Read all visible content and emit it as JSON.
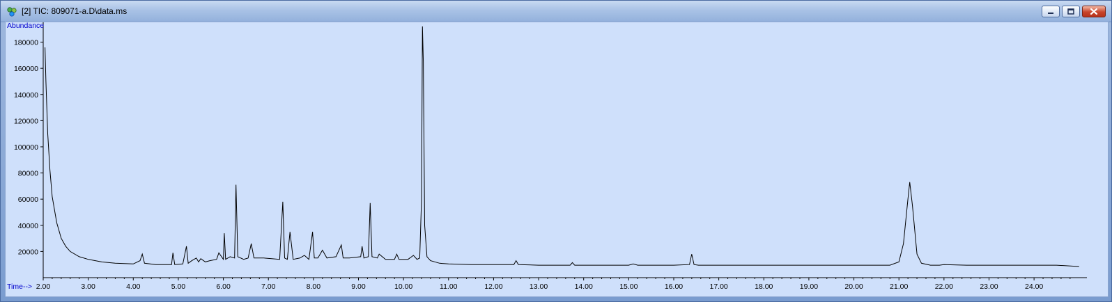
{
  "window": {
    "title": "[2] TIC: 809071-a.D\\data.ms",
    "buttons": {
      "minimize": "minimize",
      "maximize": "maximize",
      "close": "close"
    }
  },
  "chart_data": {
    "type": "line",
    "ylabel": "Abundance",
    "xlabel": "Time-->",
    "xlim": [
      2.0,
      25.05
    ],
    "ylim": [
      0,
      192000
    ],
    "y_ticks": [
      20000,
      40000,
      60000,
      80000,
      100000,
      120000,
      140000,
      160000,
      180000
    ],
    "y_tick_labels": [
      "20000",
      "40000",
      "60000",
      "80000",
      "100000",
      "120000",
      "140000",
      "160000",
      "180000"
    ],
    "x_ticks": [
      2,
      3,
      4,
      5,
      6,
      7,
      8,
      9,
      10,
      11,
      12,
      13,
      14,
      15,
      16,
      17,
      18,
      19,
      20,
      21,
      22,
      23,
      24
    ],
    "x_tick_labels": [
      "2.00",
      "3.00",
      "4.00",
      "5.00",
      "6.00",
      "7.00",
      "8.00",
      "9.00",
      "10.00",
      "11.00",
      "12.00",
      "13.00",
      "14.00",
      "15.00",
      "16.00",
      "17.00",
      "18.00",
      "19.00",
      "20.00",
      "21.00",
      "22.00",
      "23.00",
      "24.00"
    ],
    "grid": false,
    "line_color": "#000000",
    "background_color": "#cfe0fb",
    "series": [
      {
        "x": [
          2.04,
          2.06,
          2.1,
          2.15,
          2.2,
          2.3,
          2.4,
          2.5,
          2.6,
          2.8,
          3.0,
          3.3,
          3.6,
          4.0,
          4.15,
          4.2,
          4.25,
          4.5,
          4.85,
          4.88,
          4.92,
          5.1,
          5.18,
          5.22,
          5.3,
          5.4,
          5.45,
          5.5,
          5.6,
          5.7,
          5.85,
          5.9,
          6.0,
          6.02,
          6.05,
          6.15,
          6.25,
          6.28,
          6.32,
          6.45,
          6.55,
          6.62,
          6.68,
          6.9,
          7.25,
          7.32,
          7.36,
          7.42,
          7.48,
          7.55,
          7.7,
          7.8,
          7.9,
          7.98,
          8.02,
          8.1,
          8.2,
          8.3,
          8.5,
          8.62,
          8.66,
          8.8,
          9.05,
          9.08,
          9.12,
          9.22,
          9.26,
          9.3,
          9.42,
          9.46,
          9.6,
          9.8,
          9.85,
          9.9,
          10.1,
          10.22,
          10.3,
          10.36,
          10.4,
          10.42,
          10.44,
          10.47,
          10.52,
          10.6,
          10.8,
          11.0,
          11.5,
          12.0,
          12.45,
          12.5,
          12.55,
          13.0,
          13.7,
          13.75,
          13.8,
          14.5,
          15.0,
          15.1,
          15.2,
          16.0,
          16.35,
          16.4,
          16.45,
          16.55,
          17.0,
          18.0,
          19.0,
          20.0,
          20.8,
          21.0,
          21.1,
          21.2,
          21.24,
          21.3,
          21.4,
          21.5,
          21.7,
          21.9,
          22.0,
          22.5,
          23.0,
          24.0,
          24.5,
          25.0
        ],
        "y": [
          176000,
          150000,
          110000,
          82000,
          62000,
          42000,
          30000,
          24000,
          20000,
          16000,
          14000,
          12000,
          11000,
          10500,
          13000,
          18000,
          11000,
          10000,
          10000,
          19000,
          10000,
          10500,
          24000,
          11000,
          13000,
          15000,
          12000,
          14500,
          12000,
          13000,
          14000,
          19000,
          14000,
          34000,
          14000,
          16000,
          15000,
          71000,
          16000,
          14000,
          15000,
          26000,
          15000,
          15000,
          14000,
          58000,
          15000,
          14000,
          35000,
          14000,
          15000,
          17000,
          14000,
          35000,
          15000,
          15000,
          21000,
          15000,
          16000,
          25000,
          15000,
          15000,
          16000,
          24000,
          15000,
          16000,
          57000,
          16000,
          15000,
          18000,
          14000,
          14000,
          18000,
          14000,
          14000,
          17000,
          14000,
          15000,
          60000,
          192000,
          165000,
          40000,
          16000,
          13000,
          11000,
          10500,
          10000,
          10000,
          10000,
          13000,
          10000,
          9500,
          9500,
          11500,
          9500,
          9500,
          9500,
          10500,
          9500,
          9500,
          10000,
          18000,
          10000,
          9500,
          9500,
          9500,
          9500,
          9500,
          9500,
          12000,
          26000,
          60000,
          73000,
          55000,
          18000,
          11000,
          9500,
          9500,
          10000,
          9500,
          9500,
          9500,
          9500,
          8500
        ]
      }
    ]
  }
}
